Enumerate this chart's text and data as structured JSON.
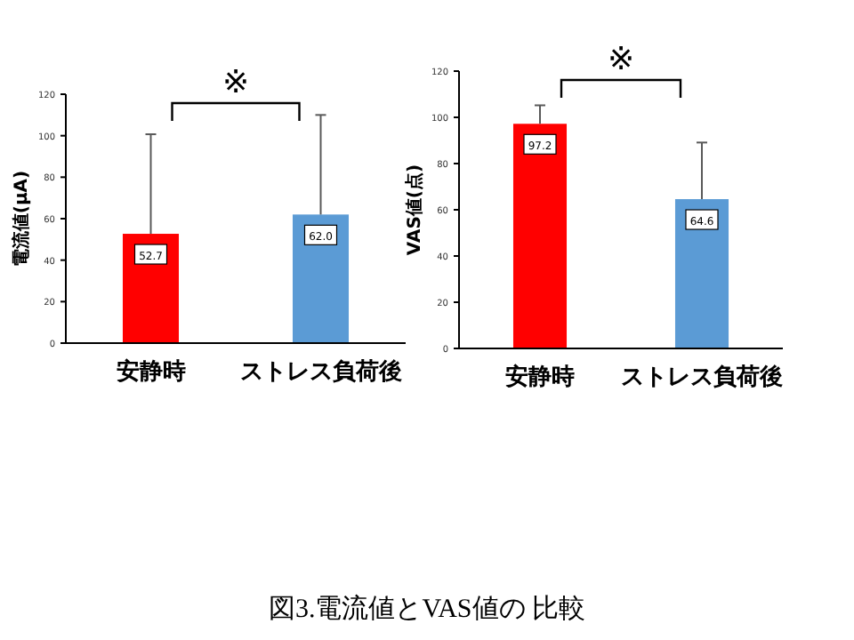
{
  "chart_data": [
    {
      "type": "bar",
      "ylabel": "電流値(μA)",
      "categories": [
        "安静時",
        "ストレス負荷後"
      ],
      "values": [
        52.7,
        62.0
      ],
      "colors": [
        "#ff0000",
        "#5b9bd5"
      ],
      "errors": [
        [
          52.7,
          100.7
        ],
        [
          62.0,
          110.0
        ]
      ],
      "value_labels": [
        "52.7",
        "62.0"
      ],
      "ylim": [
        0,
        120
      ],
      "yticks": [
        0,
        20,
        40,
        60,
        80,
        100,
        120
      ],
      "annotations": [
        "※",
        "図3.電流値とVAS値の 比較"
      ]
    },
    {
      "type": "bar",
      "ylabel": "VAS値(点)",
      "categories": [
        "安静時",
        "ストレス負荷後"
      ],
      "values": [
        97.2,
        64.6
      ],
      "colors": [
        "#ff0000",
        "#5b9bd5"
      ],
      "errors": [
        [
          97.2,
          105.2
        ],
        [
          64.6,
          89.1
        ]
      ],
      "value_labels": [
        "97.2",
        "64.6"
      ],
      "ylim": [
        0,
        120
      ],
      "yticks": [
        0,
        20,
        40,
        60,
        80,
        100,
        120
      ],
      "annotations": [
        "※"
      ]
    }
  ]
}
